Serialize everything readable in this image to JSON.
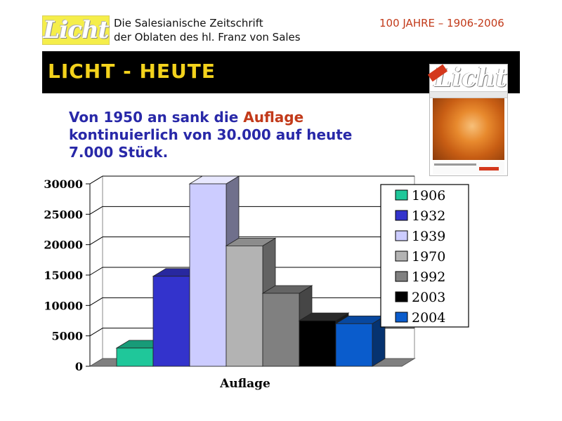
{
  "header": {
    "logo_text": "Licht",
    "subtitle_line1": "Die Salesianische Zeitschrift",
    "subtitle_line2": "der Oblaten des hl. Franz von Sales",
    "anniversary": "100 JAHRE – 1906-2006"
  },
  "banner": {
    "title": "LICHT - HEUTE"
  },
  "cover": {
    "logo_text": "Licht"
  },
  "headline": {
    "part1": "Von 1950 an sank die ",
    "highlight": "Auflage",
    "part2": " kontinuierlich von 30.000 auf heute 7.000 Stück."
  },
  "chart_data": {
    "type": "bar",
    "title": "",
    "xlabel": "Auflage",
    "ylabel": "",
    "ylim": [
      0,
      30000
    ],
    "yticks": [
      0,
      5000,
      10000,
      15000,
      20000,
      25000,
      30000
    ],
    "categories": [
      "Auflage"
    ],
    "grid": true,
    "legend_position": "right",
    "series": [
      {
        "name": "1906",
        "values": [
          3000
        ],
        "color": "#1fc79a"
      },
      {
        "name": "1932",
        "values": [
          14800
        ],
        "color": "#3333cc"
      },
      {
        "name": "1939",
        "values": [
          30000
        ],
        "color": "#ccccff"
      },
      {
        "name": "1970",
        "values": [
          19800
        ],
        "color": "#b3b3b3"
      },
      {
        "name": "1992",
        "values": [
          12000
        ],
        "color": "#808080"
      },
      {
        "name": "2003",
        "values": [
          7500
        ],
        "color": "#000000"
      },
      {
        "name": "2004",
        "values": [
          7000
        ],
        "color": "#0a5ccc"
      }
    ]
  }
}
